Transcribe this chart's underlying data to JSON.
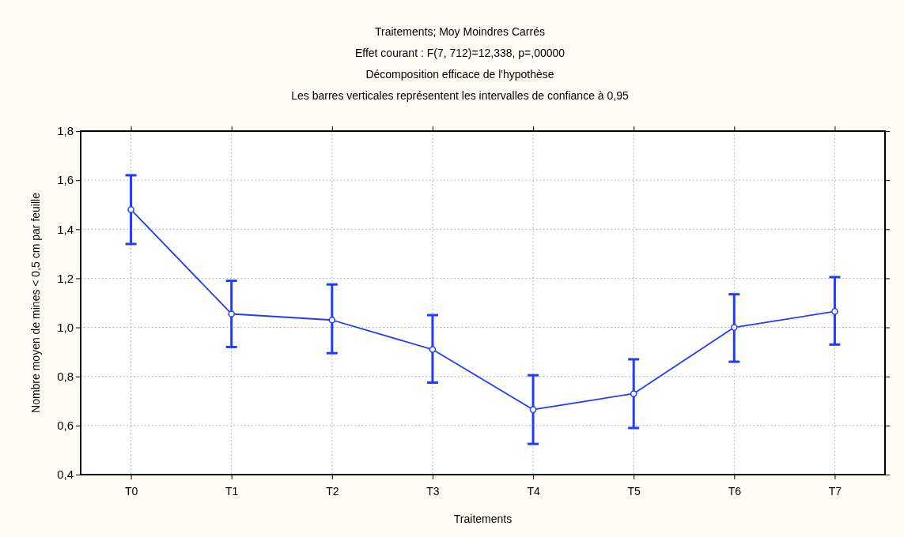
{
  "chart_data": {
    "type": "line",
    "title": "Traitements; Moy Moindres Carrés",
    "subtitle": "Effet courant : F(7, 712)=12,338, p=,00000",
    "annotations": [
      "Décomposition efficace de l'hypothèse",
      "Les barres verticales représentent les intervalles de confiance à 0,95"
    ],
    "xlabel": "Traitements",
    "ylabel": "Nombre moyen de mines < 0,5 cm par feuille",
    "categories": [
      "T0",
      "T1",
      "T2",
      "T3",
      "T4",
      "T5",
      "T6",
      "T7"
    ],
    "series": [
      {
        "color": "#1f3cff",
        "values": [
          1.48,
          1.055,
          1.03,
          0.91,
          0.665,
          0.73,
          1.0,
          1.065
        ],
        "errors": [
          [
            1.34,
            1.62
          ],
          [
            0.92,
            1.19
          ],
          [
            0.895,
            1.175
          ],
          [
            0.775,
            1.05
          ],
          [
            0.525,
            0.805
          ],
          [
            0.59,
            0.87
          ],
          [
            0.86,
            1.135
          ],
          [
            0.93,
            1.205
          ]
        ]
      }
    ],
    "ylim": [
      0.4,
      1.8
    ],
    "yticks": [
      {
        "value": 0.4,
        "label": "0,4"
      },
      {
        "value": 0.6,
        "label": "0,6"
      },
      {
        "value": 0.8,
        "label": "0,8"
      },
      {
        "value": 1.0,
        "label": "1,0"
      },
      {
        "value": 1.2,
        "label": "1,2"
      },
      {
        "value": 1.4,
        "label": "1,4"
      },
      {
        "value": 1.6,
        "label": "1,6"
      },
      {
        "value": 1.8,
        "label": "1,8"
      }
    ],
    "grid": true,
    "marker": "circle",
    "line_style": "solid"
  }
}
